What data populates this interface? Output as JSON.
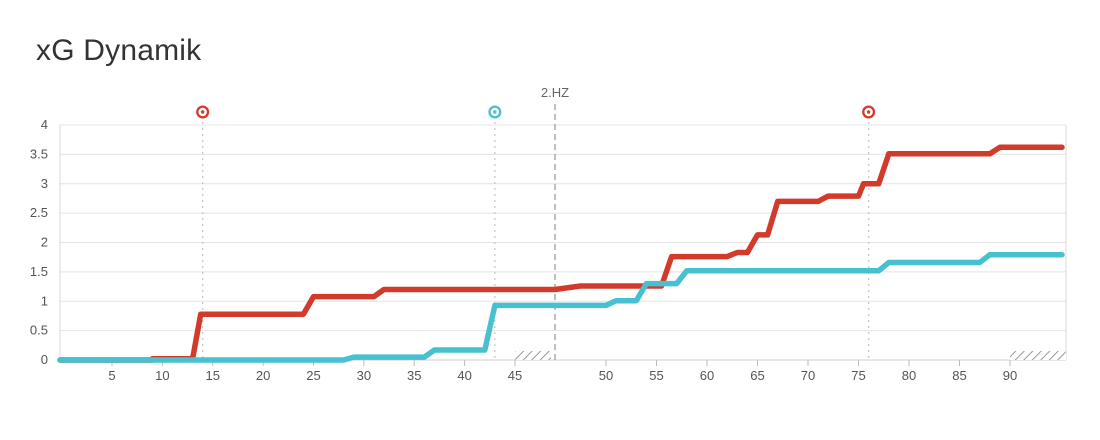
{
  "title": "xG Dynamik",
  "chart_data": {
    "type": "line",
    "title": "xG Dynamik",
    "xlabel": "",
    "ylabel": "",
    "ylim": [
      0,
      4
    ],
    "y_ticks": [
      "0",
      "0.5",
      "1",
      "1.5",
      "2",
      "2.5",
      "3",
      "3.5",
      "4"
    ],
    "y_tick_values": [
      0,
      0.5,
      1,
      1.5,
      2,
      2.5,
      3,
      3.5,
      4
    ],
    "x_ticks_first_half": [
      5,
      10,
      15,
      20,
      25,
      30,
      35,
      40,
      45
    ],
    "x_ticks_second_half": [
      50,
      55,
      60,
      65,
      70,
      75,
      80,
      85,
      90
    ],
    "halftime_label": "2.HZ",
    "grid": true,
    "series": [
      {
        "color": "#d23a2b",
        "points": [
          [
            0,
            0
          ],
          [
            9,
            0
          ],
          [
            9,
            0.02
          ],
          [
            13,
            0.02
          ],
          [
            13.8,
            0.78
          ],
          [
            24,
            0.78
          ],
          [
            25,
            1.08
          ],
          [
            31,
            1.08
          ],
          [
            32,
            1.2
          ],
          [
            46,
            1.2
          ],
          [
            46,
            1.2
          ],
          [
            48,
            1.26
          ],
          [
            55.5,
            1.26
          ],
          [
            56.5,
            1.76
          ],
          [
            62,
            1.76
          ],
          [
            63,
            1.83
          ],
          [
            64,
            1.83
          ],
          [
            65,
            2.13
          ],
          [
            66,
            2.13
          ],
          [
            67,
            2.7
          ],
          [
            71,
            2.7
          ],
          [
            72,
            2.79
          ],
          [
            75,
            2.79
          ],
          [
            75.5,
            3.0
          ],
          [
            77,
            3.0
          ],
          [
            78,
            3.51
          ],
          [
            88,
            3.51
          ],
          [
            89,
            3.62
          ],
          [
            94,
            3.62
          ]
        ]
      },
      {
        "color": "#47c0cf",
        "points": [
          [
            0,
            0
          ],
          [
            28,
            0
          ],
          [
            29,
            0.05
          ],
          [
            36,
            0.05
          ],
          [
            37,
            0.17
          ],
          [
            42,
            0.17
          ],
          [
            43,
            0.93
          ],
          [
            46,
            0.93
          ],
          [
            46,
            0.93
          ],
          [
            50,
            0.93
          ],
          [
            51,
            1.01
          ],
          [
            53,
            1.01
          ],
          [
            54,
            1.3
          ],
          [
            57,
            1.3
          ],
          [
            58,
            1.52
          ],
          [
            77,
            1.52
          ],
          [
            78,
            1.66
          ],
          [
            87,
            1.66
          ],
          [
            88,
            1.79
          ],
          [
            94,
            1.79
          ]
        ]
      }
    ],
    "goal_markers": [
      {
        "minute": 14,
        "color": "#d23a2b"
      },
      {
        "minute": 43,
        "color": "#47c0cf"
      },
      {
        "minute": 76,
        "color": "#d23a2b"
      }
    ]
  }
}
